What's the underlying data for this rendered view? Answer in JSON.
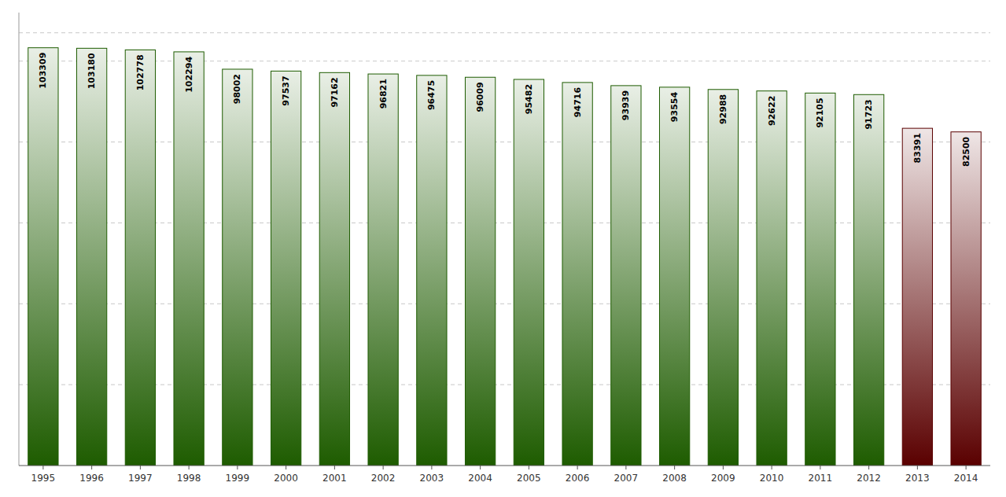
{
  "chart_data": {
    "type": "bar",
    "categories": [
      "1995",
      "1996",
      "1997",
      "1998",
      "1999",
      "2000",
      "2001",
      "2002",
      "2003",
      "2004",
      "2005",
      "2006",
      "2007",
      "2008",
      "2009",
      "2010",
      "2011",
      "2012",
      "2013",
      "2014"
    ],
    "values": [
      103309,
      103180,
      102778,
      102294,
      98002,
      97537,
      97162,
      96821,
      96475,
      96009,
      95482,
      94716,
      93939,
      93554,
      92988,
      92622,
      92105,
      91723,
      83391,
      82500
    ],
    "colors": [
      "#1e5c00",
      "#1e5c00",
      "#1e5c00",
      "#1e5c00",
      "#1e5c00",
      "#1e5c00",
      "#1e5c00",
      "#1e5c00",
      "#1e5c00",
      "#1e5c00",
      "#1e5c00",
      "#1e5c00",
      "#1e5c00",
      "#1e5c00",
      "#1e5c00",
      "#1e5c00",
      "#1e5c00",
      "#1e5c00",
      "#5a0000",
      "#5a0000"
    ],
    "ylim": [
      0,
      112000
    ],
    "yticks": [
      20000,
      40000,
      60000,
      80000,
      100000,
      107000
    ],
    "grid": true,
    "data_labels": true,
    "tick_labels": "x"
  }
}
